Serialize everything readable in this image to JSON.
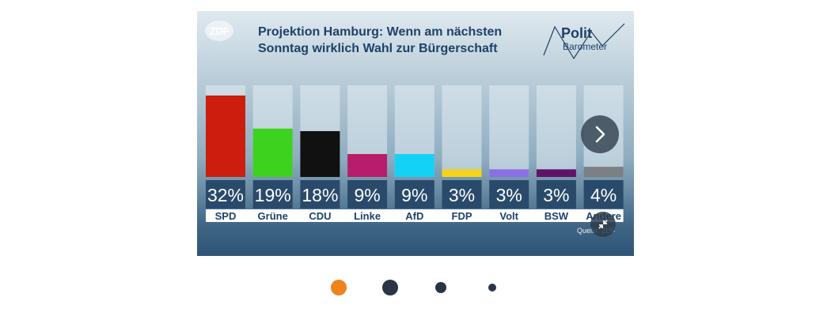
{
  "card": {
    "broadcaster_logo": "ZDF",
    "title_line1": "Projektion Hamburg: Wenn am nächsten",
    "title_line2": "Sonntag wirklich Wahl zur Bürgerschaft",
    "brand_line1": "Polit",
    "brand_line2": "Barometer",
    "source": "Quelle: ZDF"
  },
  "controls": {
    "next_icon": "chevron-right-icon",
    "expand_icon": "collapse-arrows-icon"
  },
  "pagination": {
    "count": 4,
    "active_index": 0,
    "active_color": "#f0821e",
    "inactive_color": "#2b3445"
  },
  "chart_data": {
    "type": "bar",
    "title": "Projektion Hamburg: Wenn am nächsten Sonntag wirklich Wahl zur Bürgerschaft",
    "categories": [
      "SPD",
      "Grüne",
      "CDU",
      "Linke",
      "AfD",
      "FDP",
      "Volt",
      "BSW",
      "Andere"
    ],
    "values": [
      32,
      19,
      18,
      9,
      9,
      3,
      3,
      3,
      4
    ],
    "value_labels": [
      "32%",
      "19%",
      "18%",
      "9%",
      "9%",
      "3%",
      "3%",
      "3%",
      "4%"
    ],
    "colors": [
      "#cc1d0e",
      "#3dd21e",
      "#111111",
      "#b71d6a",
      "#14d2f5",
      "#f5d31a",
      "#8c6ee6",
      "#5e1466",
      "#7c7f84"
    ],
    "ylim": [
      0,
      36
    ],
    "grid": false,
    "legend": "none"
  }
}
